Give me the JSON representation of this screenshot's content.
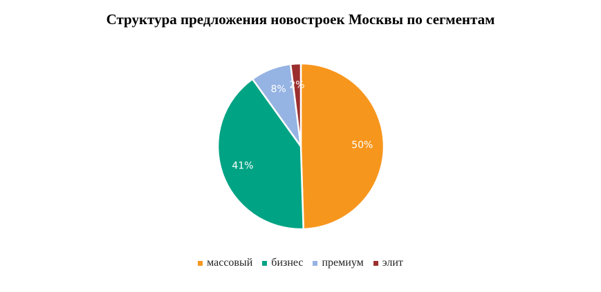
{
  "chart_data": {
    "type": "pie",
    "title": "Структура  предложения новостроек  Москвы по  сегментам",
    "categories": [
      "массовый",
      "бизнес",
      "премиум",
      "элит"
    ],
    "values": [
      50,
      41,
      8,
      2
    ],
    "labels": [
      "50%",
      "41%",
      "8%",
      "2%"
    ],
    "colors": [
      "#F7961D",
      "#00A384",
      "#95B3E3",
      "#9B2F2F"
    ],
    "legend_position": "bottom"
  }
}
